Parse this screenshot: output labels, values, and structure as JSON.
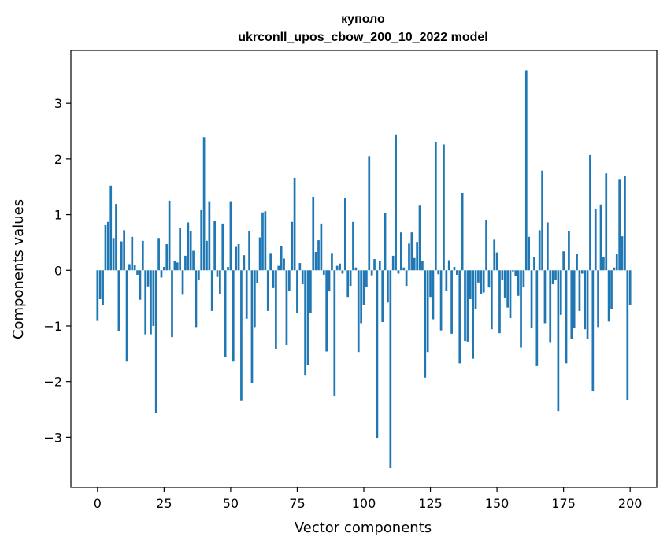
{
  "chart_data": {
    "type": "bar",
    "title_line1": "куполо",
    "title_line2": "ukrconll_upos_cbow_200_10_2022 model",
    "xlabel": "Vector components",
    "ylabel": "Components values",
    "xlim": [
      -10,
      210
    ],
    "ylim": [
      -3.9,
      3.95
    ],
    "xticks": [
      0,
      25,
      50,
      75,
      100,
      125,
      150,
      175,
      200
    ],
    "xtick_labels": [
      "0",
      "25",
      "50",
      "75",
      "100",
      "125",
      "150",
      "175",
      "200"
    ],
    "yticks": [
      -3,
      -2,
      -1,
      0,
      1,
      2,
      3
    ],
    "ytick_labels": [
      "−3",
      "−2",
      "−1",
      "0",
      "1",
      "2",
      "3"
    ],
    "bar_color": "#1f77b4",
    "grid": false,
    "values": [
      -0.91,
      -0.52,
      -0.62,
      0.81,
      0.87,
      1.52,
      0.58,
      1.19,
      -1.1,
      0.52,
      0.72,
      -1.64,
      0.11,
      0.6,
      0.1,
      -0.08,
      -0.53,
      0.53,
      -1.15,
      -0.29,
      -1.15,
      -1.0,
      -2.56,
      0.58,
      -0.13,
      0.06,
      0.47,
      1.25,
      -1.2,
      0.17,
      0.14,
      0.76,
      -0.44,
      0.26,
      0.86,
      0.71,
      0.35,
      -1.02,
      -0.17,
      1.08,
      2.39,
      0.53,
      1.24,
      -0.73,
      0.88,
      -0.12,
      -0.43,
      0.84,
      -1.56,
      0.06,
      1.24,
      -1.64,
      0.42,
      0.47,
      -2.34,
      0.27,
      -0.87,
      0.7,
      -2.03,
      -1.02,
      -0.23,
      0.59,
      1.04,
      1.06,
      -0.73,
      0.31,
      -0.32,
      -1.41,
      0.08,
      0.44,
      0.21,
      -1.34,
      -0.37,
      0.87,
      1.66,
      -0.77,
      0.13,
      -0.25,
      -1.88,
      -1.7,
      -0.77,
      1.32,
      0.33,
      0.54,
      0.84,
      -0.08,
      -1.46,
      -0.38,
      0.31,
      -2.26,
      0.08,
      0.12,
      -0.06,
      1.3,
      -0.48,
      -0.28,
      0.87,
      0.05,
      -1.47,
      -0.95,
      -0.63,
      -0.3,
      2.05,
      -0.09,
      0.2,
      -3.01,
      0.17,
      -0.93,
      1.03,
      -0.58,
      -3.56,
      0.26,
      2.44,
      -0.06,
      0.68,
      0.05,
      -0.28,
      0.48,
      0.68,
      0.22,
      0.51,
      1.16,
      0.16,
      -1.93,
      -1.47,
      -0.48,
      -0.88,
      2.31,
      -0.07,
      -1.08,
      2.26,
      -0.37,
      0.18,
      -1.14,
      0.06,
      -0.08,
      -1.67,
      1.39,
      -1.27,
      -1.28,
      -0.52,
      -1.59,
      -0.7,
      -0.22,
      -0.43,
      -0.4,
      0.91,
      -0.31,
      -1.06,
      0.55,
      0.32,
      -1.13,
      -0.17,
      -0.5,
      -0.67,
      -0.86,
      -0.02,
      -0.1,
      -0.46,
      -1.39,
      -0.3,
      3.59,
      0.6,
      -1.03,
      0.23,
      -1.72,
      0.72,
      1.79,
      -0.95,
      0.86,
      -1.29,
      -0.25,
      -0.17,
      -2.53,
      -0.8,
      0.34,
      -1.67,
      0.71,
      -1.23,
      -1.03,
      0.3,
      -0.73,
      -0.06,
      -1.06,
      -1.23,
      2.07,
      -2.17,
      1.1,
      -1.02,
      1.18,
      0.23,
      1.74,
      -0.92,
      -0.7,
      0.05,
      0.29,
      1.64,
      0.61,
      1.7,
      -2.33,
      -0.63
    ]
  }
}
